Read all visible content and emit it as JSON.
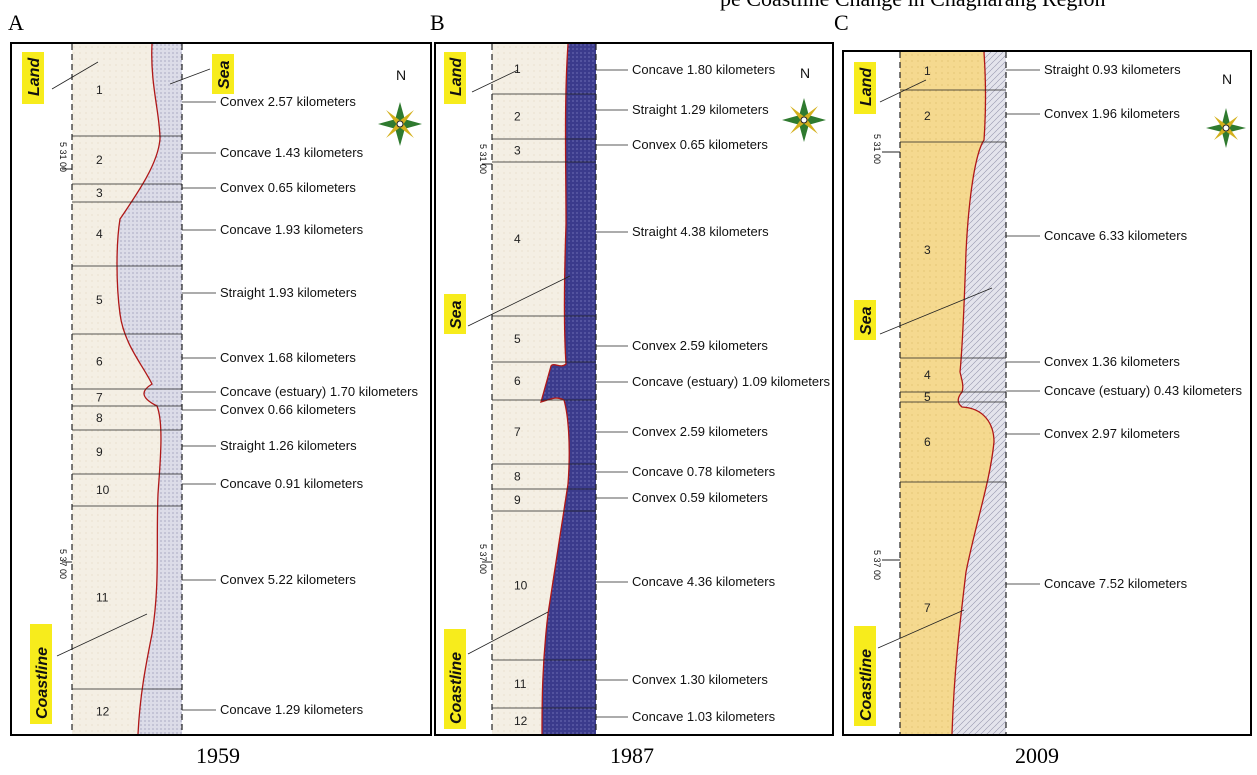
{
  "header_fragment": "pe Coastline Change in Chagharang Region",
  "unit": "kilometers",
  "north": "N",
  "coord_top": "5 31 00",
  "coord_bottom": "5 37 00",
  "colors": {
    "sea_a": "#dcdce8",
    "land_a": "#f4efe4",
    "sea_b": "#3b3b8c",
    "land_b": "#f4efe4",
    "sea_c": "#e4e4ec",
    "land_c": "#f5d98f",
    "coastline": "#b01818",
    "tag_bg": "#f7ec1c"
  },
  "panels": [
    {
      "letter": "A",
      "year": "1959",
      "tags": {
        "land": "Land",
        "sea": "Sea",
        "coastline": "Coastline"
      },
      "segments": [
        {
          "num": "1",
          "shape": "Convex",
          "value": "2.57"
        },
        {
          "num": "2",
          "shape": "Concave",
          "value": "1.43"
        },
        {
          "num": "3",
          "shape": "Convex",
          "value": "0.65"
        },
        {
          "num": "4",
          "shape": "Concave",
          "value": "1.93"
        },
        {
          "num": "5",
          "shape": "Straight",
          "value": "1.93"
        },
        {
          "num": "6",
          "shape": "Convex",
          "value": "1.68"
        },
        {
          "num": "7",
          "shape": "Concave (estuary)",
          "value": "1.70"
        },
        {
          "num": "8",
          "shape": "Convex",
          "value": "0.66"
        },
        {
          "num": "9",
          "shape": "Straight",
          "value": "1.26"
        },
        {
          "num": "10",
          "shape": "Concave",
          "value": "0.91"
        },
        {
          "num": "11",
          "shape": "Convex",
          "value": "5.22"
        },
        {
          "num": "12",
          "shape": "Concave",
          "value": "1.29"
        }
      ]
    },
    {
      "letter": "B",
      "year": "1987",
      "tags": {
        "land": "Land",
        "sea": "Sea",
        "coastline": "Coastline"
      },
      "segments": [
        {
          "num": "1",
          "shape": "Concave",
          "value": "1.80"
        },
        {
          "num": "2",
          "shape": "Straight",
          "value": "1.29"
        },
        {
          "num": "3",
          "shape": "Convex",
          "value": "0.65"
        },
        {
          "num": "4",
          "shape": "Straight",
          "value": "4.38"
        },
        {
          "num": "5",
          "shape": "Convex",
          "value": "2.59"
        },
        {
          "num": "6",
          "shape": "Concave (estuary)",
          "value": "1.09"
        },
        {
          "num": "7",
          "shape": "Convex",
          "value": "2.59"
        },
        {
          "num": "8",
          "shape": "Concave",
          "value": "0.78"
        },
        {
          "num": "9",
          "shape": "Convex",
          "value": "0.59"
        },
        {
          "num": "10",
          "shape": "Concave",
          "value": "4.36"
        },
        {
          "num": "11",
          "shape": "Convex",
          "value": "1.30"
        },
        {
          "num": "12",
          "shape": "Concave",
          "value": "1.03"
        }
      ]
    },
    {
      "letter": "C",
      "year": "2009",
      "tags": {
        "land": "Land",
        "sea": "Sea",
        "coastline": "Coastline"
      },
      "segments": [
        {
          "num": "1",
          "shape": "Straight",
          "value": "0.93"
        },
        {
          "num": "2",
          "shape": "Convex",
          "value": "1.96"
        },
        {
          "num": "3",
          "shape": "Concave",
          "value": "6.33"
        },
        {
          "num": "4",
          "shape": "Convex",
          "value": "1.36"
        },
        {
          "num": "5",
          "shape": "Concave (estuary)",
          "value": "0.43"
        },
        {
          "num": "6",
          "shape": "Convex",
          "value": "2.97"
        },
        {
          "num": "7",
          "shape": "Concave",
          "value": "7.52"
        }
      ]
    }
  ]
}
